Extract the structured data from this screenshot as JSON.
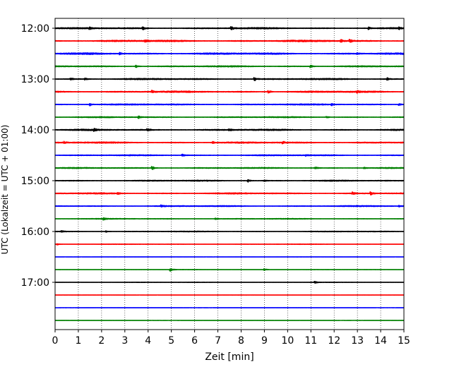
{
  "chart_data": {
    "type": "line",
    "title": "",
    "xlabel": "Zeit  [min]",
    "ylabel": "UTC (Lokalzeit = UTC + 01:00)",
    "xlim": [
      0,
      15
    ],
    "x_ticks": [
      0,
      1,
      2,
      3,
      4,
      5,
      6,
      7,
      8,
      9,
      10,
      11,
      12,
      13,
      14,
      15
    ],
    "x_tick_labels": [
      "0",
      "1",
      "2",
      "3",
      "4",
      "5",
      "6",
      "7",
      "8",
      "9",
      "10",
      "11",
      "12",
      "13",
      "14",
      "15"
    ],
    "y_axis": "time of day (UTC), one trace per 15 min, increasing downward",
    "y_range": [
      "11:45",
      "18:00"
    ],
    "y_ticks": [
      "12:00",
      "13:00",
      "14:00",
      "15:00",
      "16:00",
      "17:00"
    ],
    "grid": {
      "vertical_dotted": true,
      "horizontal": false
    },
    "color_cycle": [
      "#000000",
      "#ff0000",
      "#0000ff",
      "#008000"
    ],
    "series": [
      {
        "start": "12:00",
        "color": "#000000",
        "amplitude": 0.9,
        "events": [
          {
            "x": 1.5,
            "amp": 1.6
          },
          {
            "x": 3.8,
            "amp": 1.6
          },
          {
            "x": 7.6,
            "amp": 2.2
          },
          {
            "x": 13.5,
            "amp": 1.5
          },
          {
            "x": 14.8,
            "amp": 1.2
          }
        ]
      },
      {
        "start": "12:15",
        "color": "#ff0000",
        "amplitude": 1.1,
        "events": [
          {
            "x": 3.9,
            "amp": 1.6
          },
          {
            "x": 12.3,
            "amp": 2.0
          },
          {
            "x": 12.7,
            "amp": 1.8
          }
        ]
      },
      {
        "start": "12:30",
        "color": "#0000ff",
        "amplitude": 1.1,
        "events": [
          {
            "x": 2.8,
            "amp": 1.4
          },
          {
            "x": 13.0,
            "amp": 1.3
          }
        ]
      },
      {
        "start": "12:45",
        "color": "#008000",
        "amplitude": 0.8,
        "events": [
          {
            "x": 3.5,
            "amp": 1.4
          },
          {
            "x": 11.0,
            "amp": 1.8
          }
        ]
      },
      {
        "start": "13:00",
        "color": "#000000",
        "amplitude": 0.9,
        "events": [
          {
            "x": 0.7,
            "amp": 1.4
          },
          {
            "x": 1.3,
            "amp": 1.2
          },
          {
            "x": 8.6,
            "amp": 2.0
          },
          {
            "x": 14.3,
            "amp": 1.5
          }
        ]
      },
      {
        "start": "13:15",
        "color": "#ff0000",
        "amplitude": 1.0,
        "events": [
          {
            "x": 4.2,
            "amp": 1.6
          },
          {
            "x": 9.2,
            "amp": 1.6
          },
          {
            "x": 13.0,
            "amp": 1.4
          }
        ]
      },
      {
        "start": "13:30",
        "color": "#0000ff",
        "amplitude": 0.8,
        "events": [
          {
            "x": 1.5,
            "amp": 2.0
          },
          {
            "x": 11.9,
            "amp": 1.4
          },
          {
            "x": 14.8,
            "amp": 1.2
          }
        ]
      },
      {
        "start": "13:45",
        "color": "#008000",
        "amplitude": 0.7,
        "events": [
          {
            "x": 3.6,
            "amp": 1.4
          },
          {
            "x": 11.7,
            "amp": 1.2
          }
        ]
      },
      {
        "start": "14:00",
        "color": "#000000",
        "amplitude": 0.9,
        "events": [
          {
            "x": 1.7,
            "amp": 1.4
          },
          {
            "x": 4.0,
            "amp": 1.4
          },
          {
            "x": 7.5,
            "amp": 1.8
          }
        ]
      },
      {
        "start": "14:15",
        "color": "#ff0000",
        "amplitude": 0.9,
        "events": [
          {
            "x": 0.4,
            "amp": 1.2
          },
          {
            "x": 6.8,
            "amp": 1.4
          },
          {
            "x": 9.8,
            "amp": 1.6
          }
        ]
      },
      {
        "start": "14:30",
        "color": "#0000ff",
        "amplitude": 0.7,
        "events": [
          {
            "x": 5.5,
            "amp": 1.4
          },
          {
            "x": 10.8,
            "amp": 1.2
          }
        ]
      },
      {
        "start": "14:45",
        "color": "#008000",
        "amplitude": 0.7,
        "events": [
          {
            "x": 4.2,
            "amp": 2.0
          },
          {
            "x": 11.2,
            "amp": 1.4
          },
          {
            "x": 13.3,
            "amp": 1.2
          }
        ]
      },
      {
        "start": "15:00",
        "color": "#000000",
        "amplitude": 0.7,
        "events": [
          {
            "x": 8.3,
            "amp": 1.8
          },
          {
            "x": 9.0,
            "amp": 1.2
          }
        ]
      },
      {
        "start": "15:15",
        "color": "#ff0000",
        "amplitude": 0.8,
        "events": [
          {
            "x": 2.7,
            "amp": 1.6
          },
          {
            "x": 12.8,
            "amp": 1.6
          },
          {
            "x": 13.6,
            "amp": 1.8
          }
        ]
      },
      {
        "start": "15:30",
        "color": "#0000ff",
        "amplitude": 0.7,
        "events": [
          {
            "x": 4.6,
            "amp": 1.4
          },
          {
            "x": 14.8,
            "amp": 1.0
          }
        ]
      },
      {
        "start": "15:45",
        "color": "#008000",
        "amplitude": 0.5,
        "events": [
          {
            "x": 2.1,
            "amp": 1.2
          },
          {
            "x": 6.9,
            "amp": 1.2
          }
        ]
      },
      {
        "start": "16:00",
        "color": "#000000",
        "amplitude": 0.5,
        "events": [
          {
            "x": 0.3,
            "amp": 1.0
          },
          {
            "x": 2.2,
            "amp": 1.0
          }
        ]
      },
      {
        "start": "16:15",
        "color": "#ff0000",
        "amplitude": 0.3,
        "events": [
          {
            "x": 0.1,
            "amp": 1.0
          }
        ]
      },
      {
        "start": "16:30",
        "color": "#0000ff",
        "amplitude": 0.15,
        "events": []
      },
      {
        "start": "16:45",
        "color": "#008000",
        "amplitude": 0.2,
        "events": [
          {
            "x": 4.97,
            "amp": 2.6
          },
          {
            "x": 9.0,
            "amp": 1.8
          }
        ]
      },
      {
        "start": "17:00",
        "color": "#000000",
        "amplitude": 0.25,
        "events": [
          {
            "x": 11.2,
            "amp": 1.0
          }
        ]
      },
      {
        "start": "17:15",
        "color": "#ff0000",
        "amplitude": 0.15,
        "events": []
      },
      {
        "start": "17:30",
        "color": "#0000ff",
        "amplitude": 0.12,
        "events": []
      },
      {
        "start": "17:45",
        "color": "#008000",
        "amplitude": 0.12,
        "events": []
      }
    ]
  }
}
